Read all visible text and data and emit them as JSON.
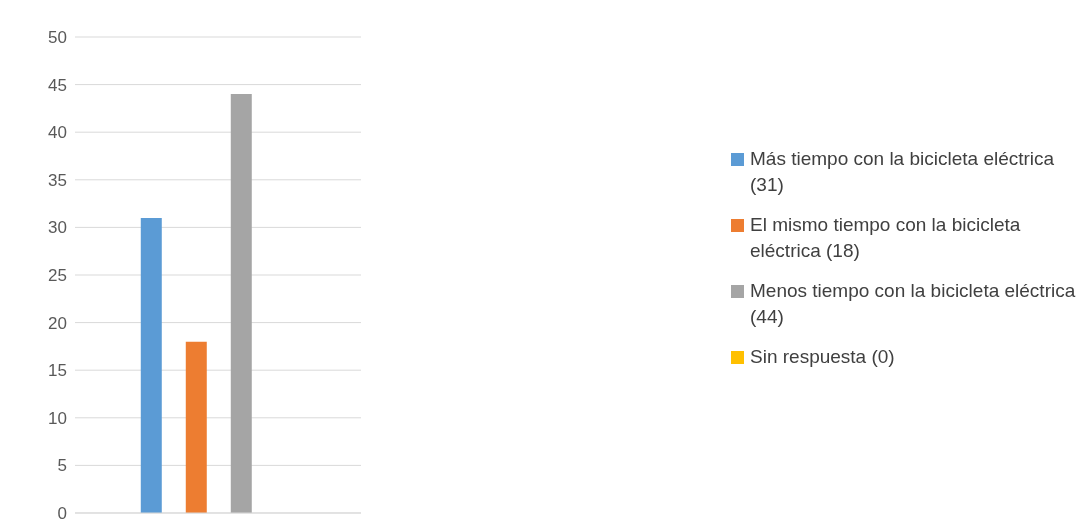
{
  "chart_data": {
    "type": "bar",
    "categories": [
      null
    ],
    "series": [
      {
        "name": "Más tiempo con la bicicleta eléctrica (31)",
        "color": "#5b9bd5",
        "values": [
          31
        ]
      },
      {
        "name": "El mismo tiempo con la bicicleta eléctrica (18)",
        "color": "#ed7d31",
        "values": [
          18
        ]
      },
      {
        "name": "Menos tiempo con la bicicleta eléctrica (44)",
        "color": "#a5a5a5",
        "values": [
          44
        ]
      },
      {
        "name": "Sin respuesta (0)",
        "color": "#ffc000",
        "values": [
          0
        ]
      }
    ],
    "ylim": [
      0,
      50
    ],
    "yticks": [
      0,
      5,
      10,
      15,
      20,
      25,
      30,
      35,
      40,
      45,
      50
    ],
    "grid": "y",
    "legend": "right"
  }
}
